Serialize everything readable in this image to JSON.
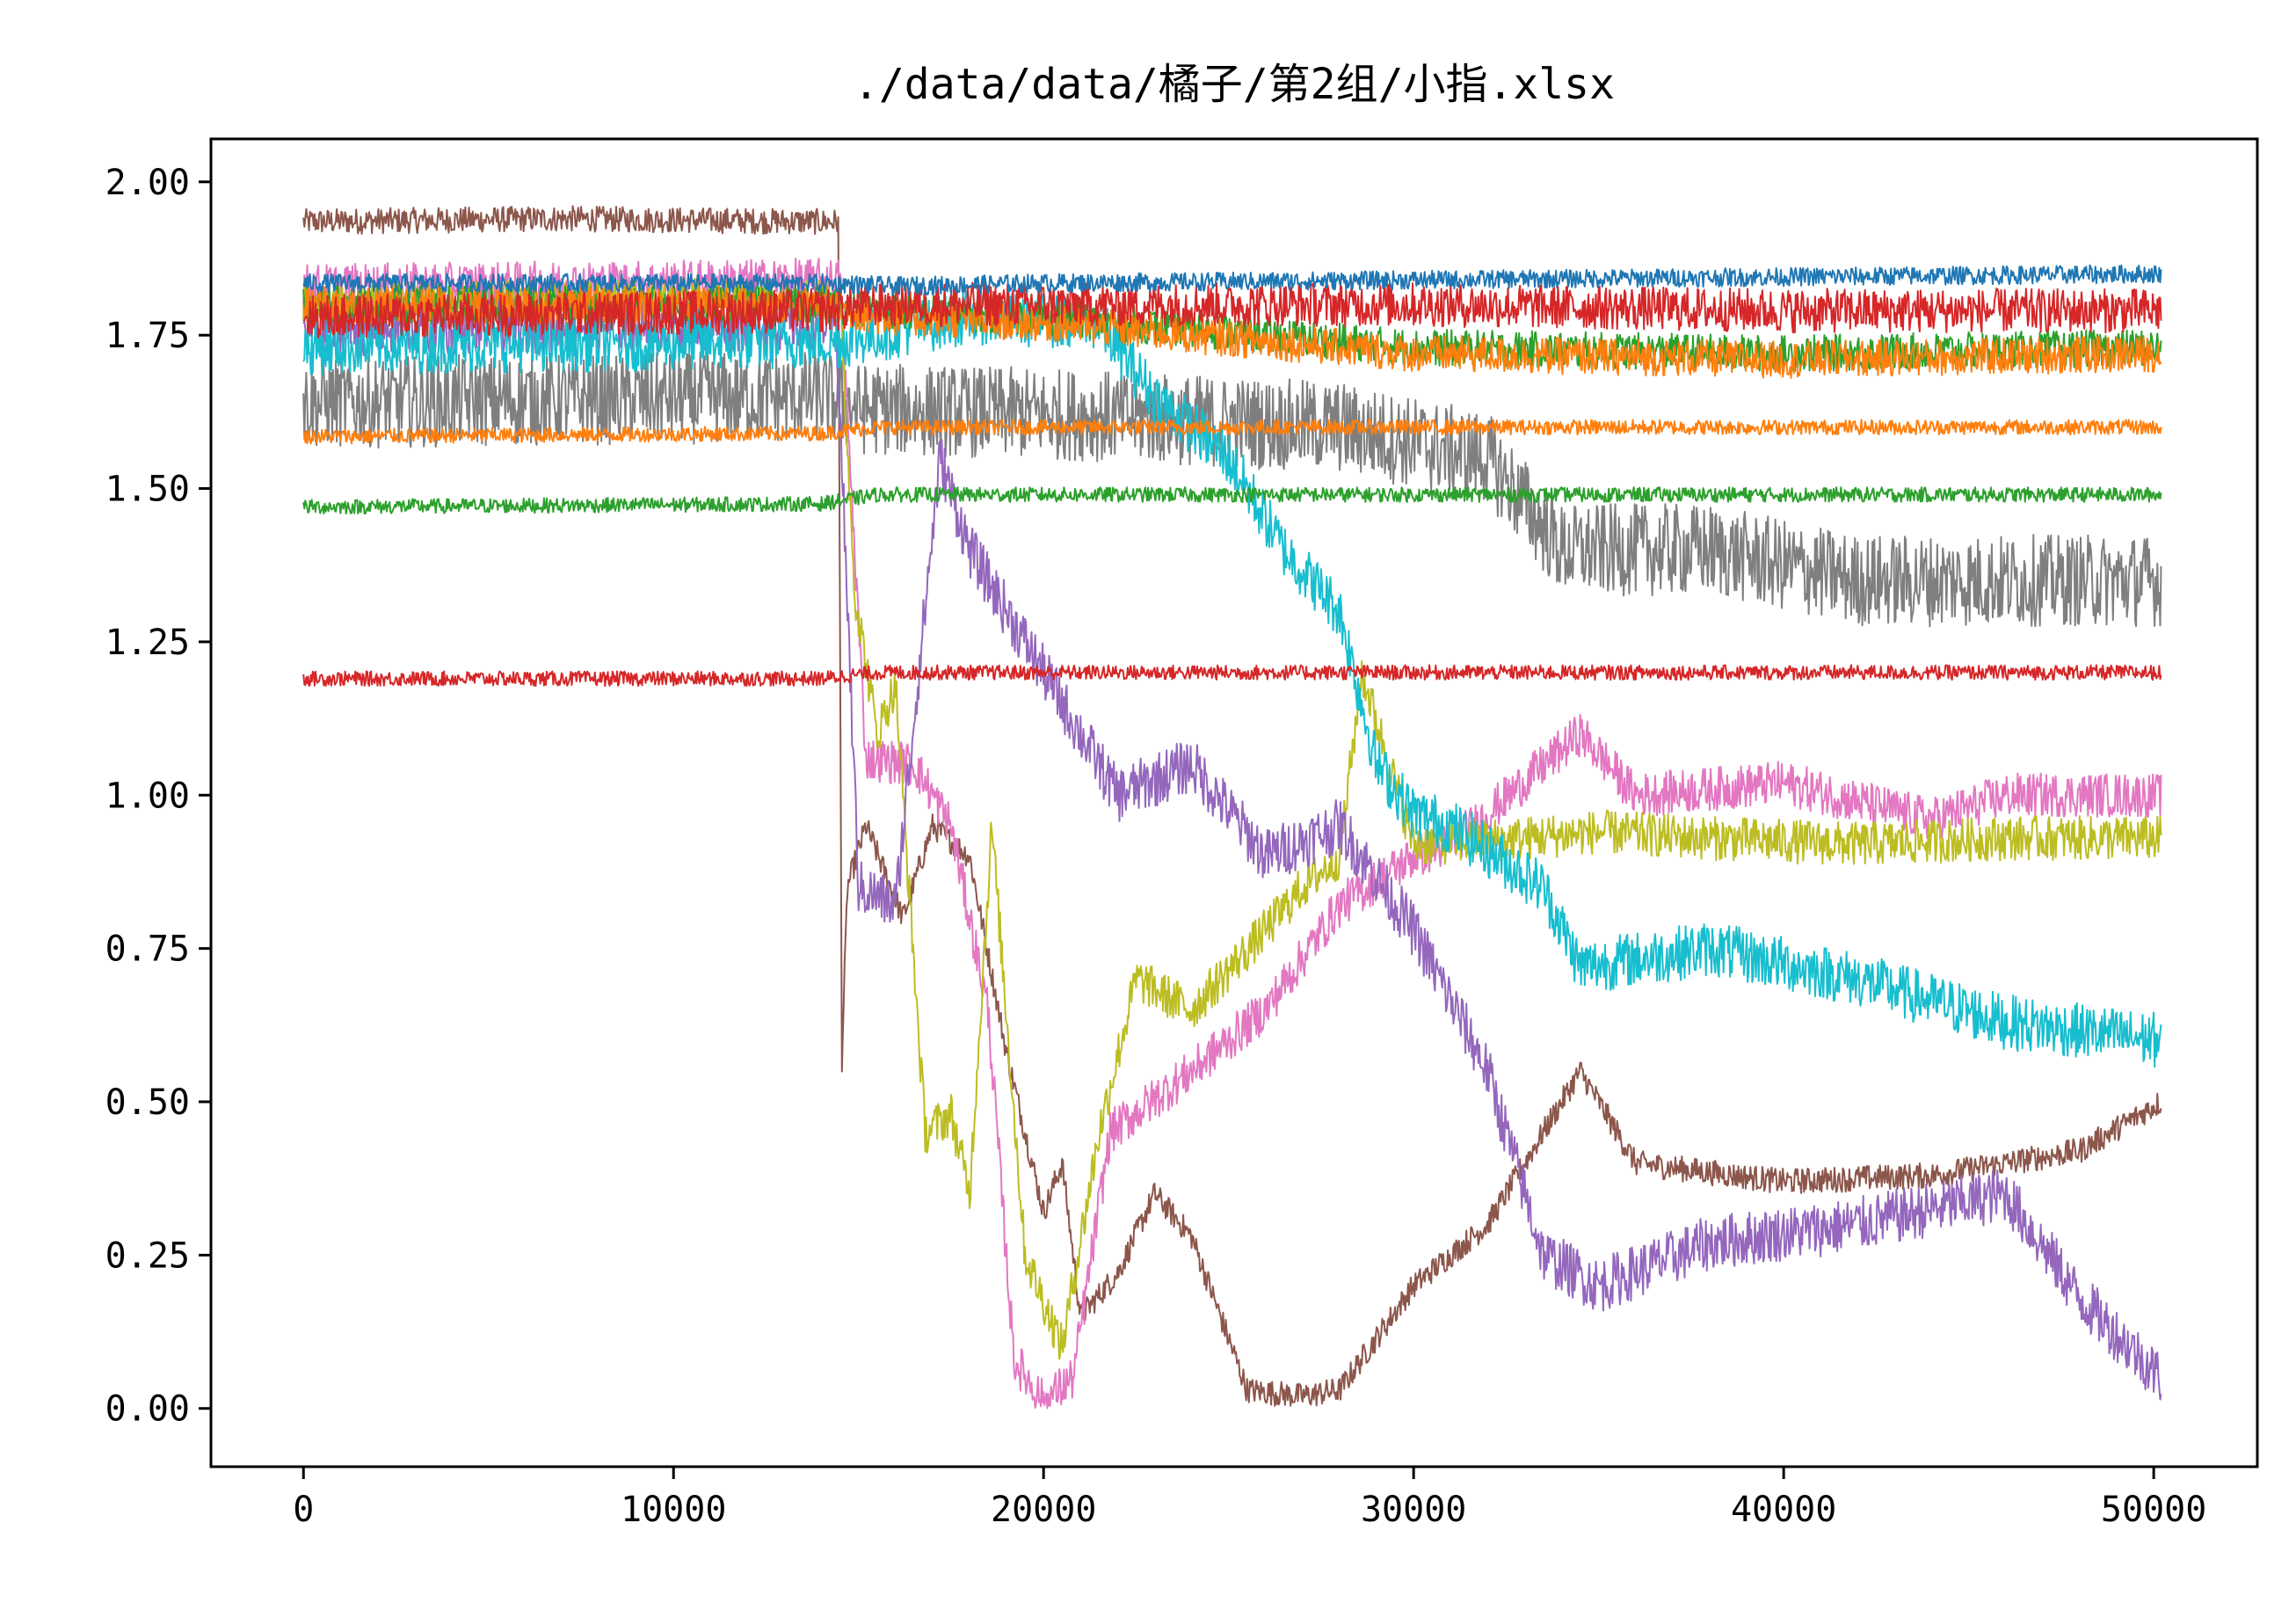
{
  "chart_data": {
    "type": "line",
    "title": "./data/data/橘子/第2组/小指.xlsx",
    "xlabel": "",
    "ylabel": "",
    "xlim": [
      -2500,
      52800
    ],
    "ylim": [
      -0.095,
      2.07
    ],
    "xticks": [
      0,
      10000,
      20000,
      30000,
      40000,
      50000
    ],
    "xtick_labels": [
      "0",
      "10000",
      "20000",
      "30000",
      "40000",
      "50000"
    ],
    "yticks": [
      0.0,
      0.25,
      0.5,
      0.75,
      1.0,
      1.25,
      1.5,
      1.75,
      2.0
    ],
    "ytick_labels": [
      "0.00",
      "0.25",
      "0.50",
      "0.75",
      "1.00",
      "1.25",
      "1.50",
      "1.75",
      "2.00"
    ],
    "grid": false,
    "legend": "none",
    "series": [
      {
        "color": "#8c564b",
        "noise": 0.007,
        "x": [
          0,
          7000,
          14000,
          14450,
          14550,
          14700,
          15200,
          16200,
          17000,
          18000,
          19000,
          20000,
          20500,
          21000,
          22000,
          23000,
          24000,
          25500,
          27000,
          28000,
          30000,
          32000,
          34500,
          36000,
          40000,
          44000,
          48000,
          50200
        ],
        "y": [
          1.935,
          1.94,
          1.935,
          1.935,
          0.57,
          0.85,
          0.95,
          0.8,
          0.95,
          0.9,
          0.58,
          0.32,
          0.4,
          0.15,
          0.22,
          0.35,
          0.28,
          0.03,
          0.02,
          0.03,
          0.2,
          0.3,
          0.55,
          0.4,
          0.37,
          0.38,
          0.42,
          0.5
        ]
      },
      {
        "color": "#7f7f7f",
        "noise": 0.025,
        "x": [
          0,
          14000,
          15000,
          21000,
          28000,
          32000,
          34000,
          38000,
          42000,
          46000,
          50200
        ],
        "y": [
          1.64,
          1.65,
          1.63,
          1.62,
          1.6,
          1.55,
          1.4,
          1.4,
          1.35,
          1.35,
          1.35
        ]
      },
      {
        "color": "#e377c2",
        "noise": 0.012,
        "x": [
          0,
          14500,
          15200,
          16500,
          17500,
          18500,
          19200,
          20000,
          20800,
          21800,
          24000,
          26000,
          28000,
          30000,
          31000,
          32000,
          34500,
          36000,
          40000,
          44000,
          46000,
          50200
        ],
        "y": [
          1.83,
          1.84,
          1.06,
          1.05,
          0.95,
          0.65,
          0.08,
          0.01,
          0.05,
          0.45,
          0.55,
          0.65,
          0.82,
          0.9,
          0.92,
          0.97,
          1.1,
          1.0,
          1.02,
          0.96,
          1.0,
          1.0
        ]
      },
      {
        "color": "#bcbd22",
        "noise": 0.012,
        "x": [
          0,
          14500,
          14900,
          15500,
          16000,
          16800,
          17500,
          18000,
          18600,
          19500,
          20500,
          21500,
          22500,
          24000,
          26000,
          27000,
          28000,
          28600,
          30000,
          33000,
          35000,
          38000,
          42000,
          46000,
          50200
        ],
        "y": [
          1.8,
          1.81,
          1.33,
          1.1,
          1.18,
          0.45,
          0.48,
          0.35,
          0.95,
          0.25,
          0.1,
          0.45,
          0.7,
          0.65,
          0.78,
          0.85,
          0.9,
          1.2,
          0.92,
          0.93,
          0.94,
          0.93,
          0.92,
          0.93,
          0.93
        ]
      },
      {
        "color": "#9467bd",
        "noise": 0.015,
        "x": [
          0,
          14400,
          15000,
          16000,
          17200,
          18000,
          20000,
          22000,
          24000,
          26000,
          28000,
          30000,
          32000,
          33500,
          35000,
          38000,
          42000,
          46000,
          48000,
          50200
        ],
        "y": [
          1.76,
          1.77,
          0.85,
          0.82,
          1.55,
          1.4,
          1.2,
          1.0,
          1.05,
          0.9,
          0.95,
          0.78,
          0.55,
          0.25,
          0.2,
          0.27,
          0.3,
          0.35,
          0.18,
          0.05
        ]
      },
      {
        "color": "#17becf",
        "noise": 0.015,
        "x": [
          0,
          14500,
          18000,
          21500,
          23000,
          25000,
          26500,
          28000,
          29000,
          30000,
          31000,
          33500,
          34500,
          38000,
          42000,
          46000,
          50200
        ],
        "y": [
          1.73,
          1.74,
          1.78,
          1.77,
          1.65,
          1.55,
          1.4,
          1.3,
          1.05,
          0.97,
          0.95,
          0.85,
          0.72,
          0.75,
          0.7,
          0.63,
          0.6
        ]
      },
      {
        "color": "#2ca02c",
        "noise": 0.01,
        "x": [
          0,
          14000,
          15500,
          20000,
          30000,
          40000,
          50200
        ],
        "y": [
          1.8,
          1.8,
          1.79,
          1.78,
          1.73,
          1.72,
          1.73
        ]
      },
      {
        "color": "#ff7f0e",
        "noise": 0.01,
        "x": [
          0,
          14000,
          15500,
          20000,
          30000,
          40000,
          50200
        ],
        "y": [
          1.8,
          1.8,
          1.78,
          1.77,
          1.72,
          1.71,
          1.72
        ]
      },
      {
        "color": "#d62728",
        "noise": 0.012,
        "x": [
          0,
          14000,
          15500,
          20000,
          30000,
          40000,
          50200
        ],
        "y": [
          1.78,
          1.79,
          1.8,
          1.8,
          1.8,
          1.79,
          1.79
        ]
      },
      {
        "color": "#1f77b4",
        "noise": 0.005,
        "x": [
          0,
          14000,
          16000,
          20000,
          30000,
          40000,
          50200
        ],
        "y": [
          1.835,
          1.835,
          1.83,
          1.835,
          1.84,
          1.845,
          1.85
        ]
      },
      {
        "color": "#ff7f0e",
        "noise": 0.004,
        "x": [
          0,
          14000,
          15500,
          20000,
          30000,
          40000,
          50200
        ],
        "y": [
          1.585,
          1.59,
          1.6,
          1.6,
          1.6,
          1.6,
          1.6
        ]
      },
      {
        "color": "#2ca02c",
        "noise": 0.004,
        "x": [
          0,
          14000,
          15500,
          20000,
          30000,
          40000,
          50200
        ],
        "y": [
          1.47,
          1.475,
          1.49,
          1.49,
          1.49,
          1.49,
          1.49
        ]
      },
      {
        "color": "#d62728",
        "noise": 0.004,
        "x": [
          0,
          14000,
          15500,
          20000,
          30000,
          40000,
          50200
        ],
        "y": [
          1.19,
          1.19,
          1.2,
          1.2,
          1.2,
          1.2,
          1.2
        ]
      }
    ]
  }
}
